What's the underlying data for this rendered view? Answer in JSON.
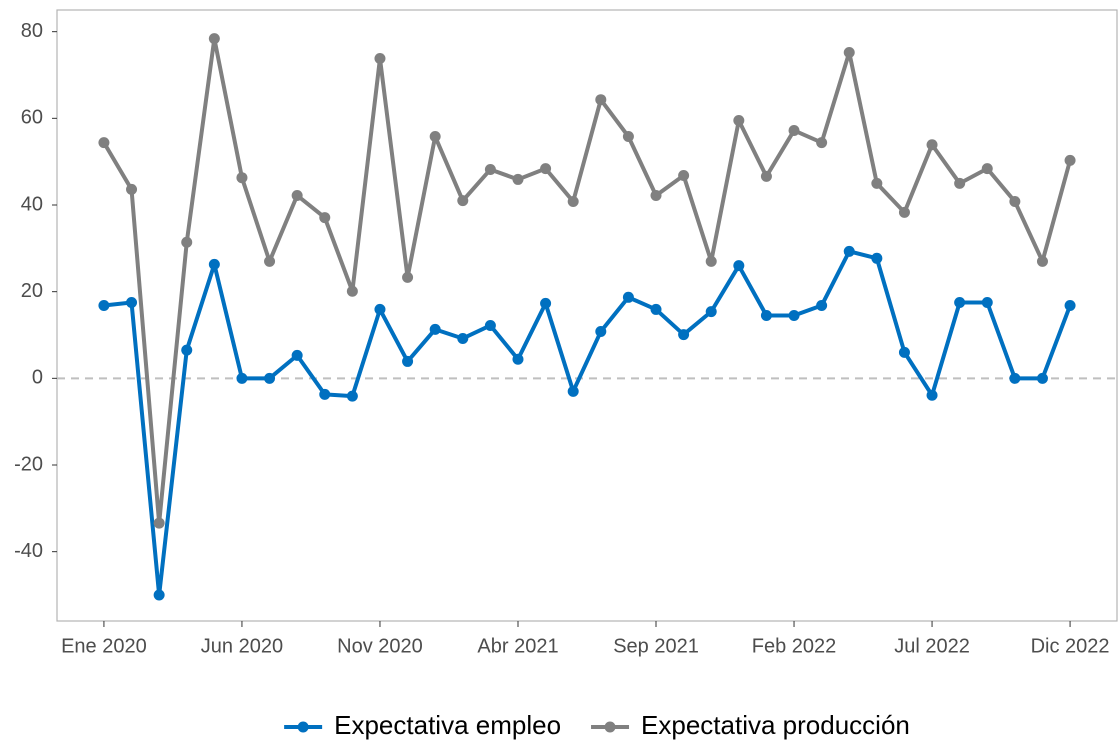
{
  "chart_data": {
    "type": "line",
    "categories": [
      "Ene 2020",
      null,
      null,
      null,
      null,
      "Jun 2020",
      null,
      null,
      null,
      null,
      "Nov 2020",
      null,
      null,
      null,
      null,
      "Abr 2021",
      null,
      null,
      null,
      null,
      "Sep 2021",
      null,
      null,
      null,
      null,
      "Feb 2022",
      null,
      null,
      null,
      null,
      "Jul 2022",
      null,
      null,
      null,
      null,
      "Dic 2022"
    ],
    "series": [
      {
        "name": "Expectativa empleo",
        "color": "#0070c0",
        "values": [
          16.8,
          17.5,
          -50,
          6.5,
          26.3,
          0,
          0,
          5.3,
          -3.7,
          -4.1,
          15.9,
          3.9,
          11.3,
          9.2,
          12.2,
          4.4,
          17.3,
          -3,
          10.8,
          18.7,
          15.9,
          10.1,
          15.4,
          26,
          14.5,
          14.5,
          16.8,
          29.3,
          27.7,
          6,
          -3.9,
          17.5,
          17.5,
          0,
          0,
          16.8
        ]
      },
      {
        "name": "Expectativa producción",
        "color": "#808080",
        "values": [
          54.4,
          43.6,
          -33.4,
          31.4,
          78.4,
          46.3,
          27,
          42.2,
          37.1,
          20.1,
          73.8,
          23.3,
          55.8,
          41,
          48.2,
          45.9,
          48.4,
          40.8,
          64.3,
          55.8,
          42.2,
          46.8,
          27,
          59.5,
          46.6,
          57.2,
          54.4,
          75.2,
          45,
          38.3,
          53.9,
          45,
          48.4,
          40.8,
          27,
          50.3
        ]
      }
    ],
    "ylim": [
      -56,
      85
    ],
    "yticks": [
      -40,
      -20,
      0,
      20,
      40,
      60,
      80
    ],
    "reference_line": 0,
    "grid": false,
    "legend": "bottom"
  }
}
